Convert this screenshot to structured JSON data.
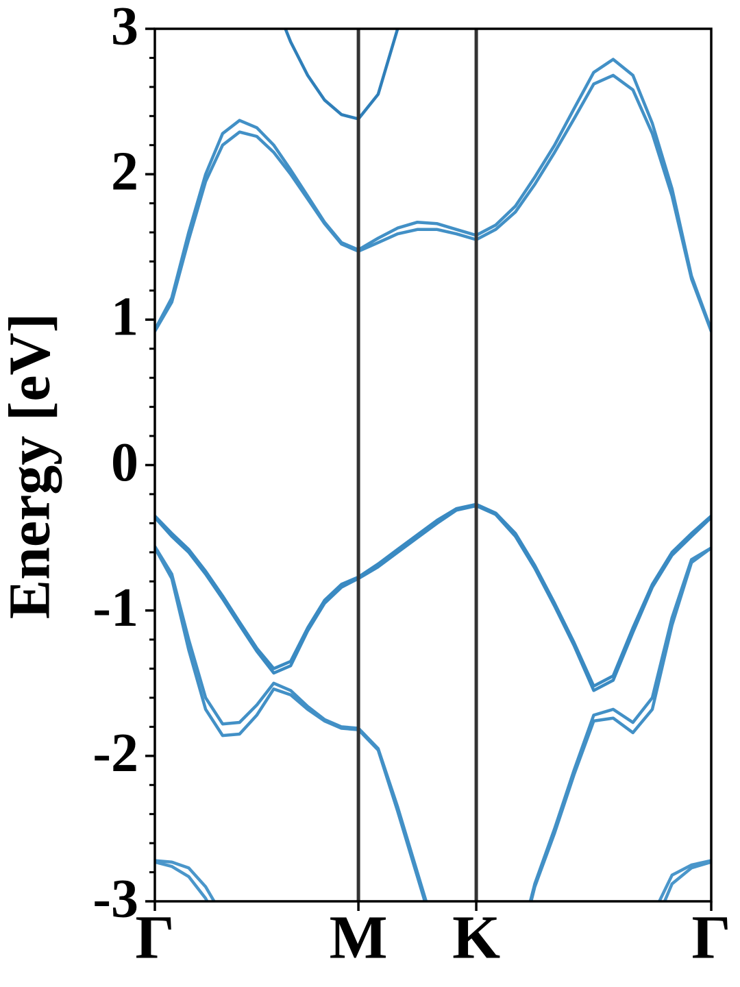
{
  "chart_data": {
    "type": "line",
    "ylabel": "Energy [eV]",
    "x": [
      0,
      0.048,
      0.096,
      0.144,
      0.192,
      0.24,
      0.289,
      0.337,
      0.385,
      0.433,
      0.481,
      0.529,
      0.577,
      0.633,
      0.688,
      0.744,
      0.8,
      0.855,
      0.911,
      0.966,
      1.022,
      1.077,
      1.133,
      1.188,
      1.244,
      1.299,
      1.355,
      1.41,
      1.466,
      1.521,
      1.577
    ],
    "xlim": [
      0,
      1.577
    ],
    "xticks": [
      {
        "value": 0,
        "label": "Γ"
      },
      {
        "value": 0.577,
        "label": "M"
      },
      {
        "value": 0.911,
        "label": "K"
      },
      {
        "value": 1.577,
        "label": "Γ"
      }
    ],
    "ylim": [
      -3,
      3
    ],
    "yticks": [
      -3,
      -2,
      -1,
      0,
      1,
      2,
      3
    ],
    "yminorticks": [
      -2.8,
      -2.6,
      -2.4,
      -2.2,
      -1.8,
      -1.6,
      -1.4,
      -1.2,
      -0.8,
      -0.6,
      -0.4,
      -0.2,
      0.2,
      0.4,
      0.6,
      0.8,
      1.2,
      1.4,
      1.6,
      1.8,
      2.2,
      2.4,
      2.6,
      2.8
    ],
    "high_symmetry_lines": true,
    "series": [
      {
        "color": "#4290c6",
        "values": [
          0.93,
          1.15,
          1.6,
          2.0,
          2.28,
          2.37,
          2.32,
          2.2,
          2.03,
          1.85,
          1.67,
          1.53,
          1.48,
          1.56,
          1.63,
          1.67,
          1.66,
          1.62,
          1.58,
          1.65,
          1.78,
          1.98,
          2.2,
          2.45,
          2.7,
          2.79,
          2.68,
          2.35,
          1.9,
          1.3,
          0.93
        ]
      },
      {
        "color": "#4290c6",
        "values": [
          0.92,
          1.12,
          1.55,
          1.95,
          2.2,
          2.29,
          2.26,
          2.15,
          2.0,
          1.83,
          1.66,
          1.52,
          1.47,
          1.53,
          1.59,
          1.62,
          1.62,
          1.59,
          1.55,
          1.62,
          1.74,
          1.93,
          2.15,
          2.38,
          2.62,
          2.68,
          2.58,
          2.28,
          1.85,
          1.28,
          0.92
        ]
      },
      {
        "color": "#2f7fb9",
        "values": [
          null,
          null,
          null,
          null,
          null,
          null,
          3.57,
          3.2,
          2.91,
          2.68,
          2.51,
          2.41,
          2.38,
          2.55,
          3.0,
          3.84,
          null,
          null,
          null,
          null,
          null,
          null,
          null,
          null,
          null,
          null,
          null,
          null,
          null,
          null,
          null
        ]
      },
      {
        "color": "#3a8ac2",
        "values": [
          -0.35,
          -0.47,
          -0.58,
          -0.73,
          -0.9,
          -1.08,
          -1.26,
          -1.4,
          -1.35,
          -1.12,
          -0.93,
          -0.82,
          -0.77,
          -0.68,
          -0.58,
          -0.48,
          -0.38,
          -0.3,
          -0.27,
          -0.33,
          -0.47,
          -0.69,
          -0.95,
          -1.22,
          -1.52,
          -1.45,
          -1.12,
          -0.82,
          -0.6,
          -0.47,
          -0.35
        ]
      },
      {
        "color": "#3a8ac2",
        "values": [
          -0.36,
          -0.49,
          -0.6,
          -0.75,
          -0.92,
          -1.1,
          -1.28,
          -1.43,
          -1.38,
          -1.14,
          -0.95,
          -0.84,
          -0.78,
          -0.7,
          -0.6,
          -0.5,
          -0.4,
          -0.31,
          -0.28,
          -0.34,
          -0.49,
          -0.71,
          -0.97,
          -1.24,
          -1.55,
          -1.48,
          -1.15,
          -0.84,
          -0.62,
          -0.49,
          -0.36
        ]
      },
      {
        "color": "#4290c6",
        "values": [
          -0.56,
          -0.75,
          -1.2,
          -1.6,
          -1.78,
          -1.77,
          -1.65,
          -1.5,
          -1.55,
          -1.66,
          -1.75,
          -1.8,
          -1.81,
          -1.95,
          -2.35,
          -2.8,
          -3.25,
          null,
          null,
          null,
          -3.4,
          -2.88,
          -2.5,
          -2.1,
          -1.72,
          -1.68,
          -1.77,
          -1.6,
          -1.05,
          -0.65,
          -0.57
        ]
      },
      {
        "color": "#4290c6",
        "values": [
          -0.57,
          -0.78,
          -1.27,
          -1.68,
          -1.86,
          -1.85,
          -1.72,
          -1.54,
          -1.58,
          -1.68,
          -1.76,
          -1.81,
          -1.82,
          -1.96,
          -2.38,
          -2.83,
          -3.28,
          null,
          null,
          null,
          -3.43,
          -2.9,
          -2.53,
          -2.13,
          -1.76,
          -1.74,
          -1.84,
          -1.68,
          -1.1,
          -0.67,
          -0.57
        ]
      },
      {
        "color": "#4a96ca",
        "values": [
          -2.72,
          -2.73,
          -2.77,
          -2.9,
          -3.1,
          null,
          null,
          null,
          null,
          null,
          null,
          null,
          null,
          null,
          null,
          null,
          null,
          null,
          null,
          null,
          null,
          null,
          null,
          null,
          null,
          null,
          null,
          -3.1,
          -2.82,
          -2.75,
          -2.72
        ]
      },
      {
        "color": "#4a96ca",
        "values": [
          -2.73,
          -2.76,
          -2.83,
          -2.98,
          -3.2,
          null,
          null,
          null,
          null,
          null,
          null,
          null,
          null,
          null,
          null,
          null,
          null,
          null,
          null,
          null,
          null,
          null,
          null,
          null,
          null,
          null,
          null,
          -3.2,
          -2.88,
          -2.77,
          -2.73
        ]
      }
    ]
  }
}
